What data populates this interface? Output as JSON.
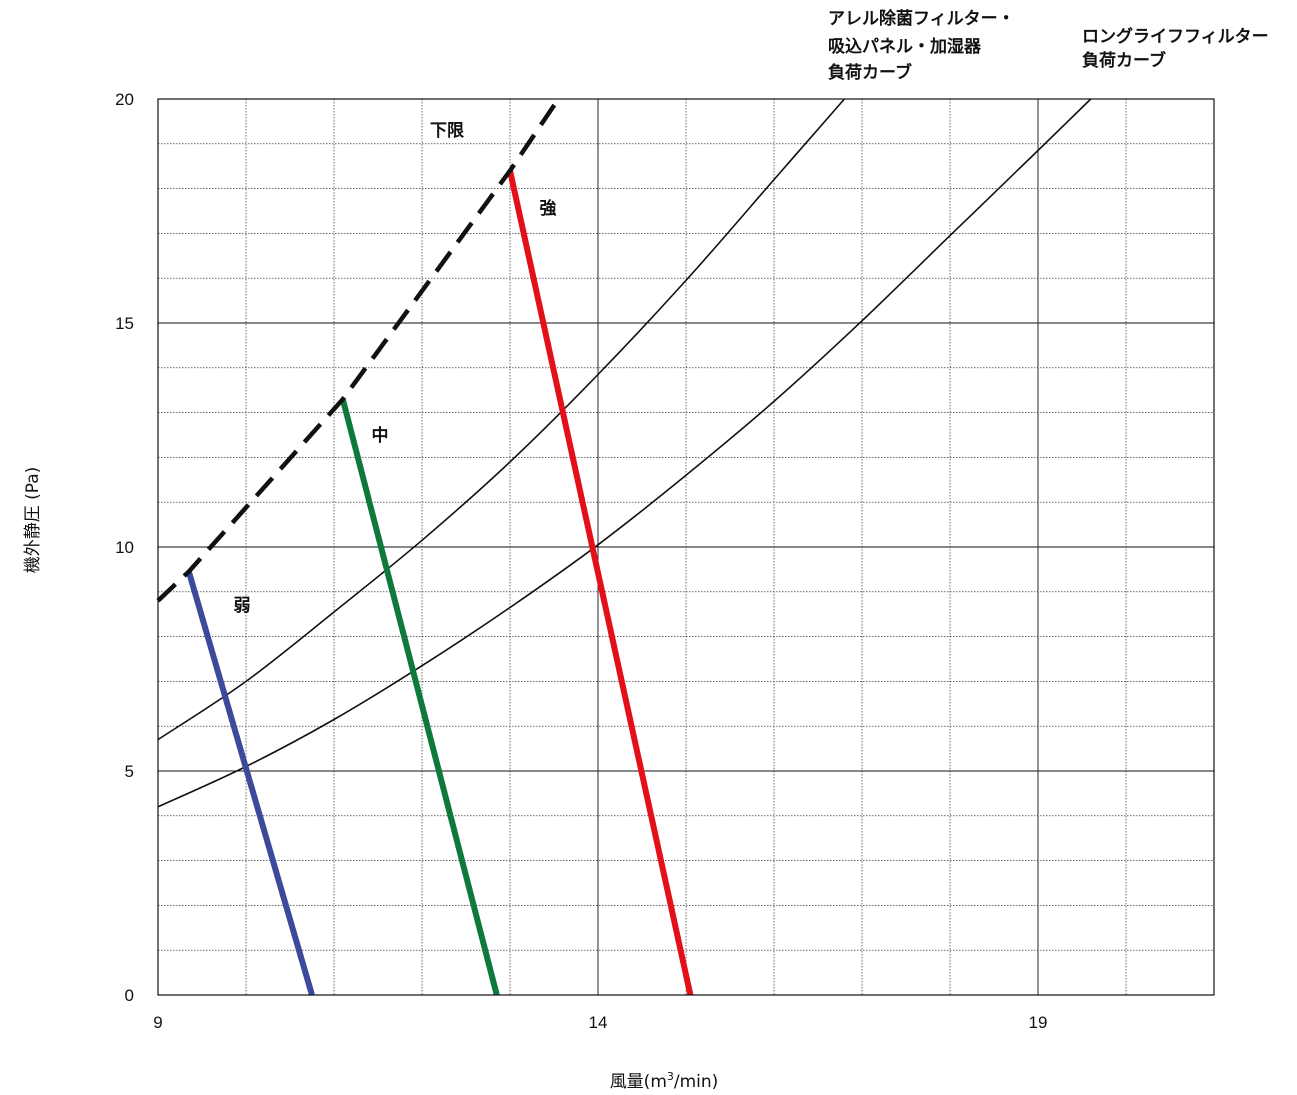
{
  "chart_data": {
    "type": "line",
    "xlabel": "風量(m3/min)",
    "xlabel_parts": {
      "prefix": "風量(m",
      "superscript": "3",
      "suffix": "/min)"
    },
    "ylabel": "機外静圧 (Pa)",
    "xlim": [
      9,
      21
    ],
    "ylim": [
      0,
      20
    ],
    "x_ticks": [
      "9",
      "14",
      "19"
    ],
    "y_ticks": [
      "0",
      "5",
      "10",
      "15",
      "20"
    ],
    "grid": true,
    "series": [
      {
        "name": "弱",
        "color": "#3b4a9a",
        "style": "solid",
        "points": [
          [
            9.35,
            9.45
          ],
          [
            10.75,
            0
          ]
        ]
      },
      {
        "name": "中",
        "color": "#0d7a3c",
        "style": "solid",
        "points": [
          [
            11.1,
            13.3
          ],
          [
            12.85,
            0
          ]
        ]
      },
      {
        "name": "強",
        "color": "#e31018",
        "style": "solid",
        "points": [
          [
            13.0,
            18.4
          ],
          [
            15.05,
            0
          ]
        ]
      },
      {
        "name": "下限",
        "color": "#111111",
        "style": "dashed",
        "points": [
          [
            9.0,
            8.8
          ],
          [
            9.35,
            9.45
          ],
          [
            11.1,
            13.3
          ],
          [
            13.0,
            18.4
          ],
          [
            13.55,
            20.0
          ]
        ]
      }
    ],
    "load_curves": [
      {
        "label_lines": [
          "アレル除菌フィルター・",
          "吸込パネル・加湿器",
          "負荷カーブ"
        ],
        "color": "#111111",
        "points": [
          [
            9.0,
            5.7
          ],
          [
            10.0,
            7.0
          ],
          [
            11.0,
            8.55
          ],
          [
            12.0,
            10.15
          ],
          [
            13.0,
            11.9
          ],
          [
            14.0,
            13.85
          ],
          [
            15.0,
            15.95
          ],
          [
            16.0,
            18.2
          ],
          [
            16.8,
            20.0
          ]
        ]
      },
      {
        "label_lines": [
          "ロングライフフィルター",
          "負荷カーブ"
        ],
        "color": "#111111",
        "points": [
          [
            9.0,
            4.2
          ],
          [
            10.0,
            5.1
          ],
          [
            11.0,
            6.15
          ],
          [
            12.0,
            7.35
          ],
          [
            13.0,
            8.65
          ],
          [
            14.0,
            10.05
          ],
          [
            15.0,
            11.6
          ],
          [
            16.0,
            13.25
          ],
          [
            17.0,
            15.05
          ],
          [
            18.0,
            16.95
          ],
          [
            19.0,
            18.85
          ],
          [
            19.6,
            20.0
          ]
        ]
      }
    ]
  }
}
